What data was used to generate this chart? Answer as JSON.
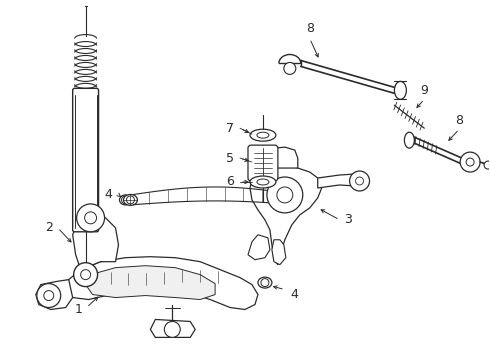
{
  "background_color": "#ffffff",
  "line_color": "#2a2a2a",
  "figure_width": 4.9,
  "figure_height": 3.6,
  "dpi": 100
}
